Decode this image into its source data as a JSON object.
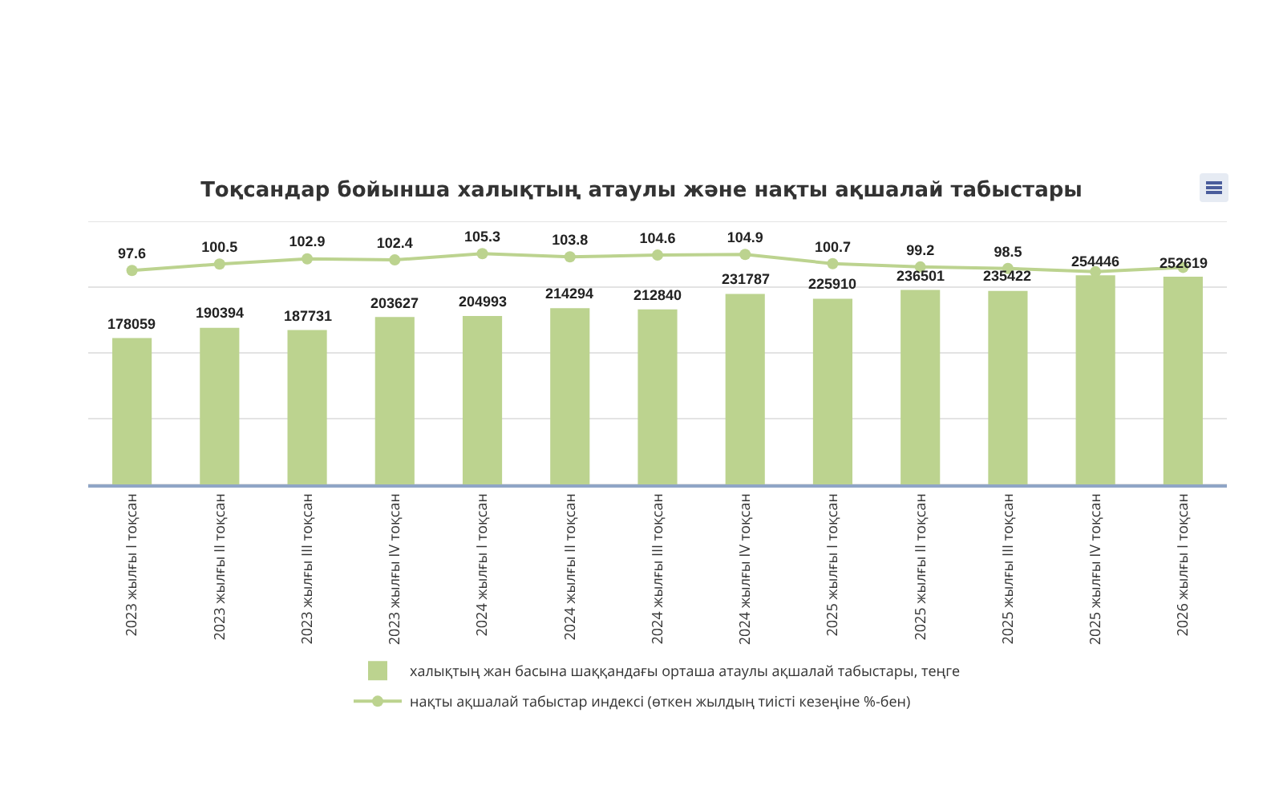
{
  "chart_data": {
    "type": "bar",
    "title": "Тоқсандар бойынша халықтың атаулы және нақты ақшалай табыстары",
    "categories": [
      "2023 жылғы I тоқсан",
      "2023 жылғы II тоқсан",
      "2023 жылғы III тоқсан",
      "2023 жылғы IV тоқсан",
      "2024 жылғы I тоқсан",
      "2024 жылғы II тоқсан",
      "2024 жылғы III тоқсан",
      "2024 жылғы IV тоқсан",
      "2025 жылғы I тоқсан",
      "2025 жылғы II тоқсан",
      "2025 жылғы III тоқсан",
      "2025 жылғы IV тоқсан",
      "2026 жылғы I тоқсан"
    ],
    "series": [
      {
        "name": "халықтың жан басына шаққандағы орташа атаулы ақшалай табыстары, теңге",
        "color": "#bcd38f",
        "values": [
          178059,
          190394,
          187731,
          203627,
          204993,
          214294,
          212840,
          231787,
          225910,
          236501,
          235422,
          254446,
          252619
        ],
        "value_labels": [
          "178059",
          "190394",
          "187731",
          "203627",
          "204993",
          "214294",
          "212840",
          "231787",
          "225910",
          "236501",
          "235422",
          "254446",
          "252619"
        ]
      },
      {
        "name": "нақты ақшалай табыстар индексі (өткен жылдың тиісті кезеңіне %-бен)",
        "type": "line",
        "axis": "y2",
        "color": "#bcd38f",
        "values": [
          97.6,
          100.5,
          102.9,
          102.4,
          105.3,
          103.8,
          104.6,
          104.9,
          100.7,
          99.2,
          98.5,
          97,
          99
        ],
        "value_labels": [
          "97.6",
          "100.5",
          "102.9",
          "102.4",
          "105.3",
          "103.8",
          "104.6",
          "104.9",
          "100.7",
          "99.2",
          "98.5",
          null,
          null
        ]
      }
    ],
    "ylim": [
      0,
      320000
    ],
    "yticks": [
      {
        "value": 0,
        "label": null
      },
      {
        "value": 80000,
        "label": null
      },
      {
        "value": 160000,
        "label": null
      },
      {
        "value": 240000,
        "label": null
      },
      {
        "value": 320000,
        "label": null
      }
    ],
    "y2lim": [
      0,
      120
    ],
    "grid": "y",
    "legend": "bottom",
    "marker": "circle",
    "tick_labels": "x"
  }
}
